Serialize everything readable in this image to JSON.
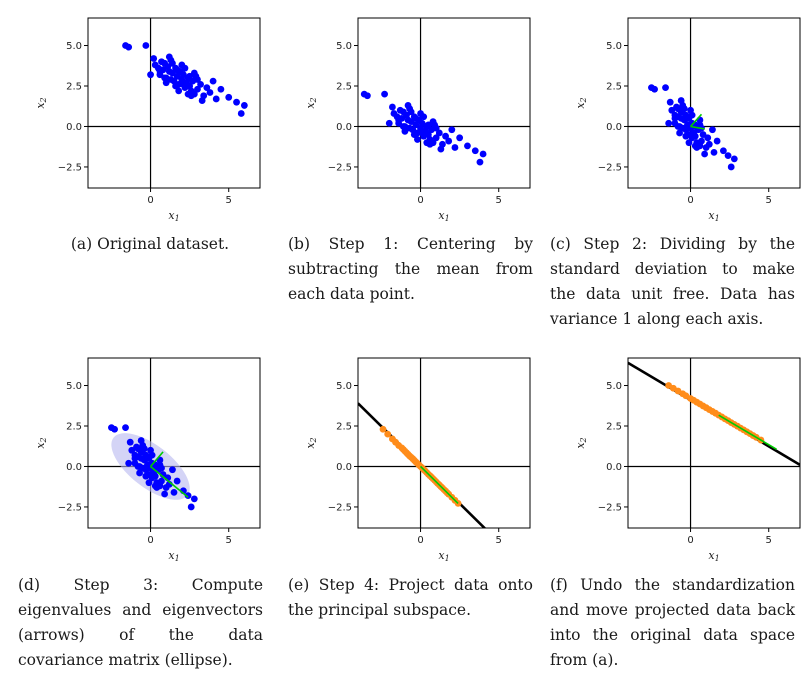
{
  "panels": [
    {
      "id": "a",
      "caption": "(a) Original dataset.",
      "chart_data": {
        "type": "scatter",
        "title": "",
        "xlabel": "x1",
        "ylabel": "x2",
        "xlim": [
          -4,
          7
        ],
        "ylim": [
          -3.8,
          6.7
        ],
        "xticks": [
          0,
          5
        ],
        "yticks": [
          -2.5,
          0.0,
          2.5,
          5.0
        ],
        "xtick_labels": [
          "0",
          "5"
        ],
        "ytick_labels": [
          "−2.5",
          "0.0",
          "2.5",
          "5.0"
        ],
        "series": [
          {
            "kind": "points",
            "color": "#0000ff",
            "x": [
              -1.6,
              -1.4,
              -0.3,
              0.0,
              0.2,
              0.3,
              0.5,
              0.6,
              0.7,
              0.8,
              0.9,
              1.0,
              1.1,
              1.2,
              1.3,
              1.4,
              1.5,
              1.6,
              1.7,
              1.8,
              1.9,
              2.0,
              2.1,
              2.2,
              2.3,
              2.4,
              2.5,
              2.6,
              2.7,
              2.8,
              2.9,
              3.0,
              3.2,
              3.4,
              3.6,
              3.8,
              4.0,
              4.2,
              4.5,
              5.0,
              5.5,
              5.8,
              6.0,
              0.6,
              1.0,
              1.4,
              1.8,
              2.2,
              2.6,
              3.0,
              1.2,
              1.6,
              2.0,
              2.4,
              2.8,
              0.9,
              1.3,
              1.7,
              2.1,
              2.5,
              3.3
            ],
            "y": [
              5.0,
              4.9,
              5.0,
              3.2,
              4.2,
              3.8,
              3.6,
              3.2,
              4.0,
              3.5,
              3.9,
              3.0,
              3.7,
              3.4,
              4.1,
              3.3,
              2.8,
              3.6,
              3.1,
              2.6,
              3.4,
              2.9,
              3.2,
              2.4,
              2.7,
              3.0,
              2.5,
              2.2,
              2.8,
              2.0,
              3.1,
              2.3,
              2.6,
              1.9,
              2.4,
              2.1,
              2.8,
              1.7,
              2.3,
              1.8,
              1.5,
              0.8,
              1.3,
              3.4,
              2.7,
              3.9,
              2.2,
              3.6,
              1.9,
              2.9,
              4.3,
              2.5,
              3.8,
              2.0,
              3.3,
              3.0,
              2.9,
              3.5,
              2.6,
              3.1,
              1.6
            ]
          }
        ]
      }
    },
    {
      "id": "b",
      "caption": "(b) Step 1: Centering by subtracting the mean from each data point.",
      "chart_data": {
        "type": "scatter",
        "title": "",
        "xlabel": "x1",
        "ylabel": "x2",
        "xlim": [
          -4,
          7
        ],
        "ylim": [
          -3.8,
          6.7
        ],
        "xticks": [
          0,
          5
        ],
        "yticks": [
          -2.5,
          0.0,
          2.5,
          5.0
        ],
        "xtick_labels": [
          "0",
          "5"
        ],
        "ytick_labels": [
          "−2.5",
          "0.0",
          "2.5",
          "5.0"
        ],
        "series": [
          {
            "kind": "points",
            "color": "#0000ff",
            "x": [
              -3.6,
              -3.4,
              -2.3,
              -2.0,
              -1.8,
              -1.7,
              -1.5,
              -1.4,
              -1.3,
              -1.2,
              -1.1,
              -1.0,
              -0.9,
              -0.8,
              -0.7,
              -0.6,
              -0.5,
              -0.4,
              -0.3,
              -0.2,
              -0.1,
              0.0,
              0.1,
              0.2,
              0.3,
              0.4,
              0.5,
              0.6,
              0.7,
              0.8,
              0.9,
              1.0,
              1.2,
              1.4,
              1.6,
              1.8,
              2.0,
              2.2,
              2.5,
              3.0,
              3.5,
              3.8,
              4.0,
              -1.4,
              -1.0,
              -0.6,
              -0.2,
              0.2,
              0.6,
              1.0,
              -0.8,
              -0.4,
              0.0,
              0.4,
              0.8,
              -1.1,
              -0.7,
              -0.3,
              0.1,
              0.5,
              1.3
            ],
            "y": [
              2.0,
              1.9,
              2.0,
              0.2,
              1.2,
              0.8,
              0.6,
              0.2,
              1.0,
              0.5,
              0.9,
              0.0,
              0.7,
              0.4,
              1.1,
              0.3,
              -0.2,
              0.6,
              0.1,
              -0.4,
              0.4,
              -0.1,
              0.2,
              -0.6,
              -0.3,
              0.0,
              -0.5,
              -0.8,
              -0.2,
              -1.0,
              0.1,
              -0.7,
              -0.4,
              -1.1,
              -0.6,
              -0.9,
              -0.2,
              -1.3,
              -0.7,
              -1.2,
              -1.5,
              -2.2,
              -1.7,
              0.4,
              -0.3,
              0.9,
              -0.8,
              0.6,
              -1.1,
              -0.1,
              1.3,
              -0.5,
              0.8,
              -1.0,
              0.3,
              0.0,
              -0.1,
              0.5,
              -0.4,
              0.1,
              -1.4
            ]
          }
        ]
      }
    },
    {
      "id": "c",
      "caption": "(c) Step 2: Dividing by the standard deviation to make the data unit free. Data has variance 1 along each axis.",
      "chart_data": {
        "type": "scatter",
        "title": "",
        "xlabel": "x1",
        "ylabel": "x2",
        "xlim": [
          -4,
          7
        ],
        "ylim": [
          -3.8,
          6.7
        ],
        "xticks": [
          0,
          5
        ],
        "yticks": [
          -2.5,
          0.0,
          2.5,
          5.0
        ],
        "xtick_labels": [
          "0",
          "5"
        ],
        "ytick_labels": [
          "−2.5",
          "0.0",
          "2.5",
          "5.0"
        ],
        "series": [
          {
            "kind": "points",
            "color": "#0000ff",
            "x": [
              -2.5,
              -2.3,
              -1.6,
              -1.4,
              -1.3,
              -1.2,
              -1.0,
              -1.0,
              -0.9,
              -0.8,
              -0.8,
              -0.7,
              -0.6,
              -0.6,
              -0.5,
              -0.4,
              -0.3,
              -0.3,
              -0.2,
              -0.1,
              -0.1,
              0.0,
              0.1,
              0.1,
              0.2,
              0.3,
              0.3,
              0.4,
              0.5,
              0.6,
              0.6,
              0.7,
              0.8,
              1.0,
              1.1,
              1.2,
              1.4,
              1.5,
              1.7,
              2.1,
              2.4,
              2.6,
              2.8,
              -1.0,
              -0.7,
              -0.4,
              -0.1,
              0.1,
              0.4,
              0.7,
              -0.6,
              -0.3,
              0.0,
              0.3,
              0.6,
              -0.8,
              -0.5,
              -0.2,
              0.1,
              0.3,
              0.9
            ],
            "y": [
              2.4,
              2.3,
              2.4,
              0.2,
              1.5,
              1.0,
              0.7,
              0.2,
              1.2,
              0.6,
              1.1,
              0.0,
              0.9,
              0.5,
              1.3,
              0.4,
              -0.2,
              0.7,
              0.1,
              -0.5,
              0.5,
              -0.1,
              0.2,
              -0.7,
              -0.4,
              0.0,
              -0.6,
              -1.0,
              -0.2,
              -1.2,
              0.1,
              -0.9,
              -0.5,
              -1.3,
              -0.7,
              -1.1,
              -0.2,
              -1.6,
              -0.9,
              -1.5,
              -1.8,
              -2.5,
              -2.0,
              0.5,
              -0.4,
              1.1,
              -1.0,
              0.7,
              -1.3,
              -0.1,
              1.6,
              -0.6,
              1.0,
              -1.2,
              0.4,
              0.0,
              -0.1,
              0.6,
              -0.5,
              0.1,
              -1.7
            ]
          },
          {
            "kind": "segment",
            "color": "#00cc00",
            "x": [
              0,
              0.7
            ],
            "y": [
              0,
              0.75
            ]
          },
          {
            "kind": "segment",
            "color": "#00cc00",
            "x": [
              0,
              0.9
            ],
            "y": [
              0,
              -0.15
            ]
          }
        ]
      }
    },
    {
      "id": "d",
      "caption": "(d) Step 3: Compute eigenvalues and eigenvectors (arrows) of the data covariance matrix (ellipse).",
      "chart_data": {
        "type": "scatter",
        "title": "",
        "xlabel": "x1",
        "ylabel": "x2",
        "xlim": [
          -4,
          7
        ],
        "ylim": [
          -3.8,
          6.7
        ],
        "xticks": [
          0,
          5
        ],
        "yticks": [
          -2.5,
          0.0,
          2.5,
          5.0
        ],
        "xtick_labels": [
          "0",
          "5"
        ],
        "ytick_labels": [
          "−2.5",
          "0.0",
          "2.5",
          "5.0"
        ],
        "series": [
          {
            "kind": "ellipse",
            "color": "#b7b7f0",
            "cx": 0,
            "cy": 0,
            "major": 3.0,
            "minor": 1.3,
            "angle_deg": -38
          },
          {
            "kind": "points",
            "color": "#0000ff",
            "x": [
              -2.5,
              -2.3,
              -1.6,
              -1.4,
              -1.3,
              -1.2,
              -1.0,
              -1.0,
              -0.9,
              -0.8,
              -0.8,
              -0.7,
              -0.6,
              -0.6,
              -0.5,
              -0.4,
              -0.3,
              -0.3,
              -0.2,
              -0.1,
              -0.1,
              0.0,
              0.1,
              0.1,
              0.2,
              0.3,
              0.3,
              0.4,
              0.5,
              0.6,
              0.6,
              0.7,
              0.8,
              1.0,
              1.1,
              1.2,
              1.4,
              1.5,
              1.7,
              2.1,
              2.4,
              2.6,
              2.8,
              -1.0,
              -0.7,
              -0.4,
              -0.1,
              0.1,
              0.4,
              0.7,
              -0.6,
              -0.3,
              0.0,
              0.3,
              0.6,
              -0.8,
              -0.5,
              -0.2,
              0.1,
              0.3,
              0.9
            ],
            "y": [
              2.4,
              2.3,
              2.4,
              0.2,
              1.5,
              1.0,
              0.7,
              0.2,
              1.2,
              0.6,
              1.1,
              0.0,
              0.9,
              0.5,
              1.3,
              0.4,
              -0.2,
              0.7,
              0.1,
              -0.5,
              0.5,
              -0.1,
              0.2,
              -0.7,
              -0.4,
              0.0,
              -0.6,
              -1.0,
              -0.2,
              -1.2,
              0.1,
              -0.9,
              -0.5,
              -1.3,
              -0.7,
              -1.1,
              -0.2,
              -1.6,
              -0.9,
              -1.5,
              -1.8,
              -2.5,
              -2.0,
              0.5,
              -0.4,
              1.1,
              -1.0,
              0.7,
              -1.3,
              -0.1,
              1.6,
              -0.6,
              1.0,
              -1.2,
              0.4,
              0.0,
              -0.1,
              0.6,
              -0.5,
              0.1,
              -1.7
            ]
          },
          {
            "kind": "segment",
            "color": "#00cc00",
            "x": [
              0,
              2.4
            ],
            "y": [
              0,
              -1.9
            ]
          },
          {
            "kind": "segment",
            "color": "#00cc00",
            "x": [
              0,
              0.8
            ],
            "y": [
              0,
              0.9
            ]
          }
        ]
      }
    },
    {
      "id": "e",
      "caption": "(e) Step 4: Project data onto the principal subspace.",
      "chart_data": {
        "type": "scatter",
        "title": "",
        "xlabel": "x1",
        "ylabel": "x2",
        "xlim": [
          -4,
          7
        ],
        "ylim": [
          -3.8,
          6.7
        ],
        "xticks": [
          0,
          5
        ],
        "yticks": [
          -2.5,
          0.0,
          2.5,
          5.0
        ],
        "xtick_labels": [
          "0",
          "5"
        ],
        "ytick_labels": [
          "−2.5",
          "0.0",
          "2.5",
          "5.0"
        ],
        "series": [
          {
            "kind": "line",
            "color": "#000000",
            "x": [
              -4,
              4.3
            ],
            "y": [
              3.9,
              -4.0
            ]
          },
          {
            "kind": "points",
            "color": "#ff8c1a",
            "x": [
              -2.4,
              -2.1,
              -1.8,
              -1.6,
              -1.4,
              -1.2,
              -1.1,
              -1.0,
              -0.9,
              -0.8,
              -0.7,
              -0.6,
              -0.5,
              -0.4,
              -0.3,
              -0.2,
              -0.1,
              0.0,
              0.1,
              0.2,
              0.3,
              0.4,
              0.5,
              0.6,
              0.7,
              0.8,
              0.9,
              1.0,
              1.1,
              1.2,
              1.3,
              1.4,
              1.5,
              1.6,
              1.7,
              1.8,
              2.0,
              2.2,
              2.4
            ],
            "y": [
              2.3,
              2.0,
              1.7,
              1.5,
              1.3,
              1.15,
              1.05,
              0.95,
              0.85,
              0.75,
              0.65,
              0.57,
              0.48,
              0.38,
              0.28,
              0.19,
              0.09,
              0.0,
              -0.09,
              -0.19,
              -0.28,
              -0.38,
              -0.48,
              -0.57,
              -0.66,
              -0.76,
              -0.85,
              -0.95,
              -1.05,
              -1.14,
              -1.24,
              -1.33,
              -1.43,
              -1.52,
              -1.62,
              -1.71,
              -1.9,
              -2.09,
              -2.28
            ]
          },
          {
            "kind": "segment",
            "color": "#00cc00",
            "x": [
              0,
              2.4
            ],
            "y": [
              0,
              -2.28
            ]
          }
        ]
      }
    },
    {
      "id": "f",
      "caption": "(f) Undo the standardization and move projected data back into the original data space from (a).",
      "chart_data": {
        "type": "scatter",
        "title": "",
        "xlabel": "x1",
        "ylabel": "x2",
        "xlim": [
          -4,
          7
        ],
        "ylim": [
          -3.8,
          6.7
        ],
        "xticks": [
          0,
          5
        ],
        "yticks": [
          -2.5,
          0.0,
          2.5,
          5.0
        ],
        "xtick_labels": [
          "0",
          "5"
        ],
        "ytick_labels": [
          "−2.5",
          "0.0",
          "2.5",
          "5.0"
        ],
        "series": [
          {
            "kind": "line",
            "color": "#000000",
            "x": [
              -4,
              7
            ],
            "y": [
              6.4,
              0.1
            ]
          },
          {
            "kind": "points",
            "color": "#ff8c1a",
            "x": [
              -1.4,
              -1.1,
              -0.8,
              -0.5,
              -0.3,
              0.0,
              0.2,
              0.4,
              0.6,
              0.8,
              1.0,
              1.2,
              1.4,
              1.6,
              1.8,
              2.0,
              2.2,
              2.4,
              2.6,
              2.8,
              3.0,
              3.2,
              3.4,
              3.6,
              3.8,
              4.0,
              4.2,
              4.5
            ],
            "y": [
              5.0,
              4.83,
              4.66,
              4.49,
              4.37,
              4.2,
              4.09,
              3.97,
              3.86,
              3.74,
              3.63,
              3.51,
              3.4,
              3.29,
              3.17,
              3.06,
              2.94,
              2.83,
              2.71,
              2.6,
              2.49,
              2.37,
              2.26,
              2.14,
              2.03,
              1.91,
              1.8,
              1.63
            ]
          },
          {
            "kind": "segment",
            "color": "#00cc00",
            "x": [
              1.8,
              5.5
            ],
            "y": [
              3.17,
              1.06
            ]
          }
        ]
      }
    }
  ]
}
